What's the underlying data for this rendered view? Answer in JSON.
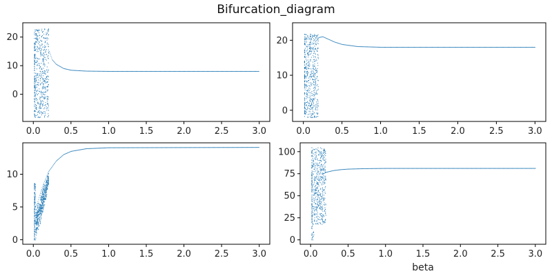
{
  "figure": {
    "title": "Bifurcation_diagram"
  },
  "chart_data": [
    {
      "type": "scatter",
      "panel": "top-left",
      "title": "",
      "xlabel": "",
      "ylabel": "",
      "xlim": [
        -0.14,
        3.14
      ],
      "ylim": [
        -9.5,
        25
      ],
      "x_ticks": [
        0.0,
        0.5,
        1.0,
        1.5,
        2.0,
        2.5,
        3.0
      ],
      "y_ticks": [
        0,
        10,
        20
      ],
      "x_tick_labels": [
        "0.0",
        "0.5",
        "1.0",
        "1.5",
        "2.0",
        "2.5",
        "3.0"
      ],
      "y_tick_labels": [
        "0",
        "10",
        "20"
      ],
      "color": "#1f77b4",
      "beta_range": [
        0.01,
        3.0
      ],
      "chaotic_region": {
        "x_range": [
          0.01,
          0.2
        ],
        "y_range": [
          -8,
          23
        ]
      },
      "curve": [
        [
          0.2,
          15.5
        ],
        [
          0.25,
          12
        ],
        [
          0.3,
          10.5
        ],
        [
          0.4,
          9
        ],
        [
          0.5,
          8.4
        ],
        [
          0.7,
          8.1
        ],
        [
          1.0,
          8.0
        ],
        [
          3.0,
          8.0
        ]
      ]
    },
    {
      "type": "scatter",
      "panel": "top-right",
      "title": "",
      "xlabel": "",
      "ylabel": "",
      "xlim": [
        -0.14,
        3.14
      ],
      "ylim": [
        -3.2,
        25
      ],
      "x_ticks": [
        0.0,
        0.5,
        1.0,
        1.5,
        2.0,
        2.5,
        3.0
      ],
      "y_ticks": [
        0,
        10,
        20
      ],
      "x_tick_labels": [
        "0.0",
        "0.5",
        "1.0",
        "1.5",
        "2.0",
        "2.5",
        "3.0"
      ],
      "y_tick_labels": [
        "0",
        "10",
        "20"
      ],
      "color": "#1f77b4",
      "beta_range": [
        0.01,
        3.0
      ],
      "chaotic_region": {
        "x_range": [
          0.01,
          0.19
        ],
        "y_range": [
          -2,
          22
        ]
      },
      "curve": [
        [
          0.15,
          19.5
        ],
        [
          0.2,
          20.8
        ],
        [
          0.25,
          21.0
        ],
        [
          0.3,
          20.5
        ],
        [
          0.4,
          19.5
        ],
        [
          0.5,
          18.8
        ],
        [
          0.7,
          18.2
        ],
        [
          1.0,
          18.0
        ],
        [
          3.0,
          18.0
        ]
      ]
    },
    {
      "type": "scatter",
      "panel": "bottom-left",
      "title": "",
      "xlabel": "",
      "ylabel": "",
      "xlim": [
        -0.14,
        3.14
      ],
      "ylim": [
        -0.7,
        14.8
      ],
      "x_ticks": [
        0.0,
        0.5,
        1.0,
        1.5,
        2.0,
        2.5,
        3.0
      ],
      "y_ticks": [
        0,
        5,
        10
      ],
      "x_tick_labels": [
        "0.0",
        "0.5",
        "1.0",
        "1.5",
        "2.0",
        "2.5",
        "3.0"
      ],
      "y_tick_labels": [
        "0",
        "5",
        "10"
      ],
      "color": "#1f77b4",
      "beta_range": [
        0.01,
        3.0
      ],
      "chaotic_region": {
        "x_range": [
          0.01,
          0.2
        ],
        "y_range": [
          0,
          8.7
        ]
      },
      "curve": [
        [
          0.05,
          5.5
        ],
        [
          0.1,
          7.5
        ],
        [
          0.15,
          9.0
        ],
        [
          0.2,
          10.4
        ],
        [
          0.3,
          12.0
        ],
        [
          0.4,
          13.0
        ],
        [
          0.5,
          13.5
        ],
        [
          0.7,
          13.9
        ],
        [
          1.0,
          14.05
        ],
        [
          3.0,
          14.1
        ]
      ]
    },
    {
      "type": "scatter",
      "panel": "bottom-right",
      "title": "",
      "xlabel": "beta",
      "ylabel": "",
      "xlim": [
        -0.14,
        3.14
      ],
      "ylim": [
        -5,
        110
      ],
      "x_ticks": [
        0.0,
        0.5,
        1.0,
        1.5,
        2.0,
        2.5,
        3.0
      ],
      "y_ticks": [
        0,
        25,
        50,
        75,
        100
      ],
      "x_tick_labels": [
        "0.0",
        "0.5",
        "1.0",
        "1.5",
        "2.0",
        "2.5",
        "3.0"
      ],
      "y_tick_labels": [
        "0",
        "25",
        "50",
        "75",
        "100"
      ],
      "color": "#1f77b4",
      "beta_range": [
        0.01,
        3.0
      ],
      "chaotic_region": {
        "x_range": [
          0.01,
          0.2
        ],
        "y_range": [
          0,
          105
        ]
      },
      "curve": [
        [
          0.15,
          74
        ],
        [
          0.2,
          76.5
        ],
        [
          0.3,
          78.5
        ],
        [
          0.4,
          79.6
        ],
        [
          0.5,
          80.2
        ],
        [
          0.7,
          80.7
        ],
        [
          1.0,
          81.0
        ],
        [
          3.0,
          81.0
        ]
      ]
    }
  ]
}
